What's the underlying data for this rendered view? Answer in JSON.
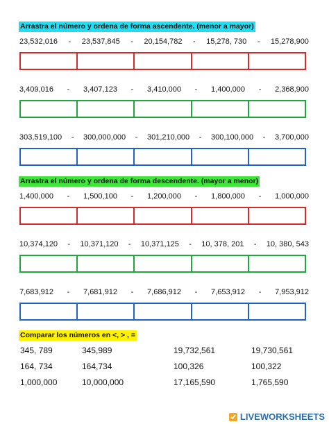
{
  "sections": [
    {
      "heading": "Arrastra el número y ordena de forma ascendente. (menor a mayor)",
      "rows": [
        {
          "numbers": [
            "23,532,016",
            "23,537,845",
            "20,154,782",
            "15,278, 730",
            "15,278,900"
          ]
        },
        {
          "numbers": [
            "3,409,016",
            "3,407,123",
            "3,410,000",
            "1,400,000",
            "2,368,900"
          ]
        },
        {
          "numbers": [
            "303,519,100",
            "300,000,000",
            "301,210,000",
            "300,100,000",
            "3,700,000"
          ]
        }
      ]
    },
    {
      "heading": "Arrastra el número y ordena de forma descendente. (mayor a menor)",
      "rows": [
        {
          "numbers": [
            "1,400,000",
            "1,500,100",
            "1,200,000",
            "1,800,000",
            "1,000,000"
          ]
        },
        {
          "numbers": [
            "10,374,120",
            "10,371,120",
            "10,371,125",
            "10, 378, 201",
            "10, 380, 543"
          ]
        },
        {
          "numbers": [
            "7,683,912",
            "7,681,912",
            "7,686,912",
            "7,653,912",
            "7,953,912"
          ]
        }
      ]
    }
  ],
  "separator": "-",
  "compare": {
    "heading": "Comparar los números en <, > , =",
    "rows": [
      [
        "345, 789",
        "345,989",
        "19,732,561",
        "19,730,561"
      ],
      [
        "164, 734",
        "164,734",
        "100,326",
        "100,322"
      ],
      [
        "1,000,000",
        "10,000,000",
        "17,165,590",
        "1,765,590"
      ]
    ]
  },
  "footer": {
    "brand": "LIVEWORKSHEETS"
  }
}
